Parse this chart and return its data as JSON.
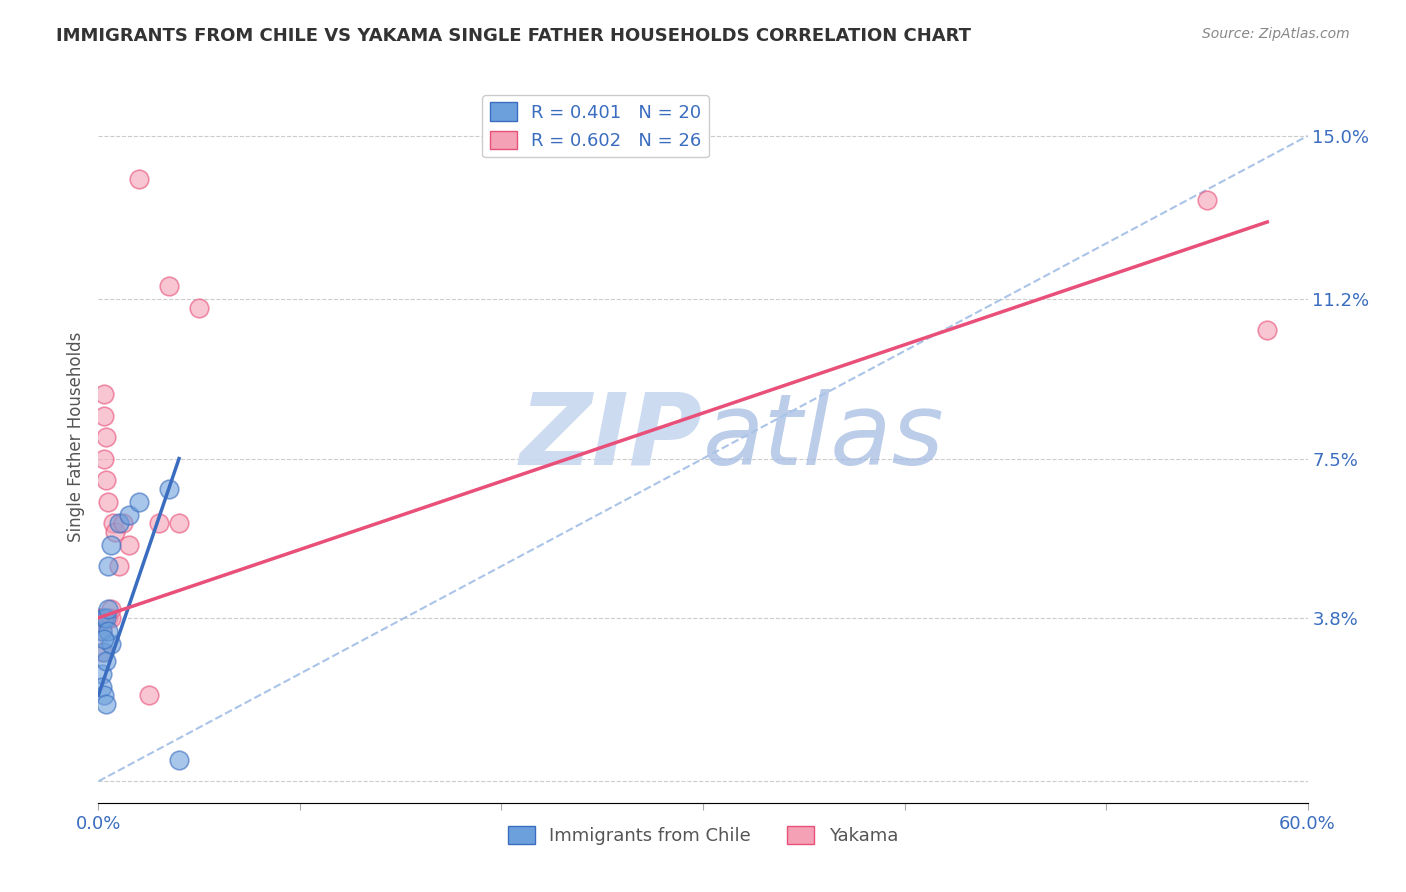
{
  "title": "IMMIGRANTS FROM CHILE VS YAKAMA SINGLE FATHER HOUSEHOLDS CORRELATION CHART",
  "source": "Source: ZipAtlas.com",
  "ylabel": "Single Father Households",
  "xlim": [
    0.0,
    0.6
  ],
  "ylim": [
    -0.005,
    0.165
  ],
  "xticks": [
    0.0,
    0.1,
    0.2,
    0.3,
    0.4,
    0.5,
    0.6
  ],
  "xticklabels": [
    "0.0%",
    "",
    "",
    "",
    "",
    "",
    "60.0%"
  ],
  "ytick_values": [
    0.0,
    0.038,
    0.075,
    0.112,
    0.15
  ],
  "yticklabels": [
    "",
    "3.8%",
    "7.5%",
    "11.2%",
    "15.0%"
  ],
  "legend_label1": "R = 0.401   N = 20",
  "legend_label2": "R = 0.602   N = 26",
  "legend_x_labels": [
    "Immigrants from Chile",
    "Yakama"
  ],
  "watermark_zip": "ZIP",
  "watermark_atlas": "atlas",
  "blue_color": "#6ca0dc",
  "pink_color": "#f4a0b5",
  "blue_line_color": "#3a6dbf",
  "pink_line_color": "#e8507a",
  "dashed_line_color": "#aac4e8",
  "scatter_blue": [
    [
      0.002,
      0.025
    ],
    [
      0.003,
      0.03
    ],
    [
      0.004,
      0.028
    ],
    [
      0.002,
      0.035
    ],
    [
      0.003,
      0.038
    ],
    [
      0.004,
      0.038
    ],
    [
      0.005,
      0.04
    ],
    [
      0.006,
      0.032
    ],
    [
      0.005,
      0.035
    ],
    [
      0.003,
      0.033
    ],
    [
      0.002,
      0.022
    ],
    [
      0.003,
      0.02
    ],
    [
      0.004,
      0.018
    ],
    [
      0.005,
      0.05
    ],
    [
      0.006,
      0.055
    ],
    [
      0.01,
      0.06
    ],
    [
      0.015,
      0.062
    ],
    [
      0.02,
      0.065
    ],
    [
      0.035,
      0.068
    ],
    [
      0.04,
      0.005
    ]
  ],
  "scatter_pink": [
    [
      0.001,
      0.038
    ],
    [
      0.002,
      0.038
    ],
    [
      0.002,
      0.035
    ],
    [
      0.002,
      0.03
    ],
    [
      0.003,
      0.09
    ],
    [
      0.003,
      0.085
    ],
    [
      0.004,
      0.08
    ],
    [
      0.003,
      0.075
    ],
    [
      0.004,
      0.07
    ],
    [
      0.005,
      0.065
    ],
    [
      0.005,
      0.038
    ],
    [
      0.006,
      0.038
    ],
    [
      0.006,
      0.04
    ],
    [
      0.007,
      0.06
    ],
    [
      0.008,
      0.058
    ],
    [
      0.01,
      0.05
    ],
    [
      0.012,
      0.06
    ],
    [
      0.015,
      0.055
    ],
    [
      0.02,
      0.14
    ],
    [
      0.025,
      0.02
    ],
    [
      0.03,
      0.06
    ],
    [
      0.035,
      0.115
    ],
    [
      0.04,
      0.06
    ],
    [
      0.05,
      0.11
    ],
    [
      0.55,
      0.135
    ],
    [
      0.58,
      0.105
    ]
  ],
  "blue_trendline": [
    [
      0.0,
      0.02
    ],
    [
      0.04,
      0.075
    ]
  ],
  "pink_trendline": [
    [
      0.0,
      0.038
    ],
    [
      0.58,
      0.13
    ]
  ],
  "dashed_trendline": [
    [
      0.0,
      0.0
    ],
    [
      0.6,
      0.15
    ]
  ]
}
